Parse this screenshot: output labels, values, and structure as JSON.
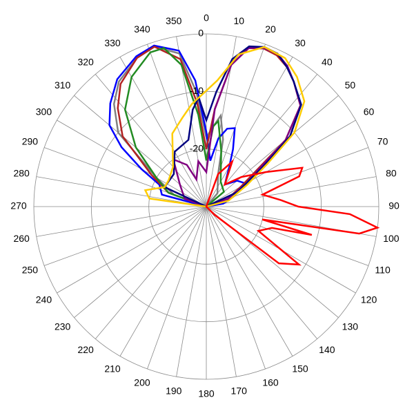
{
  "chart_data": {
    "type": "polar",
    "rlim": [
      -30,
      0
    ],
    "rticks": [
      0,
      -10,
      -20
    ],
    "thetaticks": [
      0,
      10,
      20,
      30,
      40,
      50,
      60,
      70,
      80,
      90,
      100,
      110,
      120,
      130,
      140,
      150,
      160,
      170,
      180,
      190,
      200,
      210,
      220,
      230,
      240,
      250,
      260,
      270,
      280,
      290,
      300,
      310,
      320,
      330,
      340,
      350
    ],
    "series": [
      {
        "color": "#808080",
        "theta": [
          270,
          290,
          300,
          310,
          318,
          325,
          335,
          342,
          350,
          355,
          0,
          5,
          9,
          14,
          20,
          40,
          90
        ],
        "values": [
          -30,
          -24,
          -20,
          -10,
          -6,
          -3.5,
          -1.5,
          -0.8,
          -3,
          -10,
          -18,
          -16,
          -14,
          -18,
          -24,
          -27,
          -30
        ]
      },
      {
        "color": "#0000ff",
        "theta": [
          270,
          285,
          295,
          300,
          305,
          310,
          317,
          325,
          335,
          342,
          350,
          355,
          0,
          5,
          10,
          15,
          20,
          25,
          30,
          40,
          50,
          60,
          70,
          80,
          90
        ],
        "values": [
          -30,
          -22,
          -21,
          -17,
          -12,
          -8,
          -5.5,
          -3,
          -1.2,
          -0.6,
          -2.5,
          -8,
          -17,
          -22,
          -18,
          -16,
          -15.5,
          -19,
          -22,
          -25,
          -23,
          -22,
          -25,
          -27,
          -30
        ]
      },
      {
        "color": "#b22222",
        "theta": [
          270,
          290,
          300,
          310,
          318,
          325,
          335,
          342,
          350,
          355,
          0,
          5,
          10,
          15,
          20,
          25,
          30,
          35,
          43,
          50,
          55,
          60,
          70,
          90
        ],
        "values": [
          -30,
          -23,
          -19,
          -11,
          -7,
          -4,
          -1.5,
          -0.8,
          -4,
          -12,
          -20,
          -13,
          -5,
          -1.5,
          -0.8,
          -1,
          -2,
          -3.5,
          -6,
          -12,
          -20,
          -23,
          -26,
          -30
        ]
      },
      {
        "color": "#228b22",
        "theta": [
          270,
          290,
          300,
          310,
          320,
          330,
          340,
          345,
          350,
          355,
          0,
          5,
          8,
          15,
          30,
          50,
          90
        ],
        "values": [
          -30,
          -23,
          -20,
          -14,
          -8,
          -4,
          -1.5,
          -1.5,
          -5,
          -14,
          -22,
          -16,
          -15,
          -20,
          -25,
          -26,
          -30
        ]
      },
      {
        "color": "#800080",
        "theta": [
          270,
          290,
          310,
          325,
          335,
          340,
          350,
          0,
          5,
          10,
          15,
          20,
          25,
          30,
          35,
          43,
          50,
          55,
          60,
          70,
          90
        ],
        "values": [
          -30,
          -26,
          -24,
          -20,
          -22,
          -25,
          -22,
          -24,
          -13,
          -5,
          -1.5,
          -0.7,
          -0.7,
          -1.8,
          -3.5,
          -6,
          -12,
          -19,
          -22,
          -26,
          -30
        ]
      },
      {
        "color": "#000080",
        "theta": [
          270,
          295,
          315,
          330,
          345,
          352,
          356,
          0,
          5,
          10,
          15,
          20,
          25,
          30,
          35,
          43,
          50,
          55,
          65,
          90
        ],
        "values": [
          -30,
          -22,
          -22,
          -19,
          -18,
          -13,
          -11,
          -15,
          -10,
          -4,
          -1.2,
          -0.5,
          -0.7,
          -2,
          -3.5,
          -5.8,
          -11,
          -18,
          -24,
          -30
        ]
      },
      {
        "color": "#ffcc00",
        "theta": [
          270,
          278,
          285,
          295,
          305,
          320,
          335,
          345,
          352,
          358,
          5,
          12,
          20,
          28,
          35,
          43,
          50,
          55,
          62,
          75,
          90
        ],
        "values": [
          -30,
          -20,
          -19,
          -22,
          -22,
          -21,
          -16,
          -14,
          -12,
          -10.5,
          -8,
          -3,
          -0.5,
          -0.8,
          -2.5,
          -5,
          -10,
          -17,
          -22,
          -26,
          -30
        ]
      },
      {
        "color": "#ff0000",
        "theta": [
          0,
          20,
          30,
          40,
          50,
          60,
          68,
          72,
          78,
          85,
          90,
          93,
          97,
          100,
          103,
          105,
          108,
          115,
          122,
          128,
          135,
          180
        ],
        "values": [
          -30,
          -24,
          -21,
          -25,
          -22,
          -18,
          -12,
          -13,
          -20,
          -17,
          -14,
          -5,
          0,
          -3,
          -20,
          -11,
          -18,
          -20,
          -11,
          -14,
          -28,
          -30
        ]
      }
    ]
  }
}
